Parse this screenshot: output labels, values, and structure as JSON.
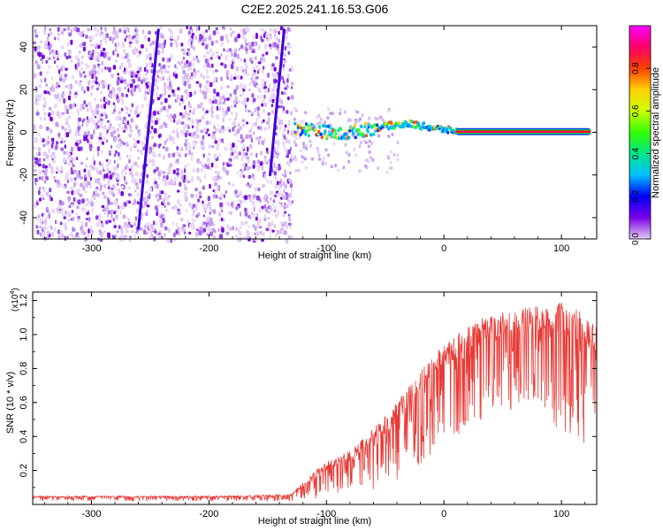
{
  "figure_title": "C2E2.2025.241.16.53.G06",
  "chart_data": [
    {
      "type": "heatmap",
      "title": "C2E2.2025.241.16.53.G06",
      "xlabel": "Height of straight line (km)",
      "ylabel": "Frequency (Hz)",
      "xlim": [
        -350,
        130
      ],
      "ylim": [
        -50,
        50
      ],
      "xticks": [
        -300,
        -200,
        -100,
        0,
        100
      ],
      "yticks": [
        -40,
        -20,
        0,
        20,
        40
      ],
      "colorbar": {
        "label": "Normalized spectral amplitude",
        "range": [
          0,
          1
        ],
        "ticks": [
          "0.0",
          "0.2",
          "0.4",
          "0.6",
          "0.8"
        ],
        "tick_values": [
          0.0,
          0.2,
          0.4,
          0.6,
          0.8
        ],
        "colors": [
          "#e6ccf5",
          "#7a00e6",
          "#0000ff",
          "#00c0ff",
          "#00e68a",
          "#33ff00",
          "#ccff00",
          "#ffd000",
          "#ff4000",
          "#ff0066",
          "#ff00ff"
        ]
      },
      "features": {
        "noise_region_x": [
          -350,
          -130
        ],
        "signal_trace": [
          {
            "x": -128,
            "y": 2
          },
          {
            "x": -110,
            "y": 1
          },
          {
            "x": -90,
            "y": -1
          },
          {
            "x": -70,
            "y": 1
          },
          {
            "x": -50,
            "y": 3
          },
          {
            "x": -30,
            "y": 4
          },
          {
            "x": -10,
            "y": 2
          },
          {
            "x": 10,
            "y": 0.5
          },
          {
            "x": 40,
            "y": 0.3
          },
          {
            "x": 80,
            "y": 0.3
          },
          {
            "x": 125,
            "y": 0.3
          }
        ],
        "diagonal_streaks": [
          {
            "x_start": -260,
            "y_start": -45,
            "x_end": -243,
            "y_end": 48
          },
          {
            "x_start": -148,
            "y_start": -20,
            "x_end": -136,
            "y_end": 48
          }
        ]
      }
    },
    {
      "type": "line",
      "title": "",
      "xlabel": "Height of straight line (km)",
      "ylabel": "SNR (10 * v/v)",
      "ylabel_multiplier": "(x10^4)",
      "multiplier_base": "(x10",
      "multiplier_exp": "4",
      "xlim": [
        -350,
        130
      ],
      "ylim": [
        0,
        1.25
      ],
      "xticks": [
        -300,
        -200,
        -100,
        0,
        100
      ],
      "yticks": [
        0.2,
        0.4,
        0.6,
        0.8,
        1.0,
        1.2
      ],
      "ytick_labels": [
        "0.2",
        "0.4",
        "0.6",
        "0.8",
        "1.0",
        "1.2"
      ],
      "series": [
        {
          "name": "SNR",
          "color": "#e83a35",
          "envelope_x": [
            -350,
            -300,
            -200,
            -130,
            -110,
            -100,
            -80,
            -60,
            -40,
            -20,
            0,
            20,
            40,
            60,
            80,
            100,
            120,
            130
          ],
          "envelope_upper": [
            0.05,
            0.05,
            0.05,
            0.06,
            0.2,
            0.25,
            0.32,
            0.45,
            0.6,
            0.8,
            0.95,
            1.06,
            1.12,
            1.15,
            1.18,
            1.2,
            1.12,
            1.05
          ],
          "envelope_lower": [
            0.02,
            0.02,
            0.02,
            0.02,
            0.03,
            0.05,
            0.06,
            0.08,
            0.12,
            0.22,
            0.35,
            0.45,
            0.52,
            0.55,
            0.55,
            0.42,
            0.35,
            0.4
          ]
        }
      ]
    }
  ]
}
